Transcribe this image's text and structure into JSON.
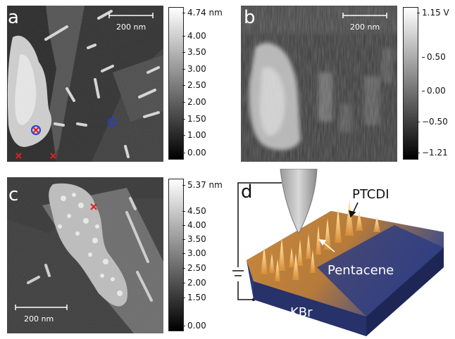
{
  "panels": {
    "a": {
      "letter": "a",
      "scalebar": "200 nm",
      "colorbar": {
        "top": "4.74 nm",
        "ticks": [
          "4.00",
          "3.50",
          "3.00",
          "2.50",
          "2.00",
          "1.50",
          "1.00",
          "0.00"
        ]
      }
    },
    "b": {
      "letter": "b",
      "scalebar": "200 nm",
      "colorbar": {
        "top": "1.15 V",
        "ticks": [
          "0.50",
          "0.00",
          "−0.50",
          "−1.21"
        ]
      }
    },
    "c": {
      "letter": "c",
      "scalebar": "200 nm",
      "colorbar": {
        "top": "5.37 nm",
        "ticks": [
          "4.50",
          "4.00",
          "3.50",
          "3.00",
          "2.50",
          "2.00",
          "1.50",
          "0.00"
        ]
      }
    },
    "d": {
      "letter": "d",
      "labels": {
        "ptcdi": "PTCDI",
        "pentacene": "Pentacene",
        "kbr": "KBr"
      }
    }
  },
  "colors": {
    "marker_red": "#e02020",
    "marker_blue": "#1f3fd8",
    "kbr_blue": "#2e3a7c",
    "molecule_orange": "#e3a04a"
  }
}
